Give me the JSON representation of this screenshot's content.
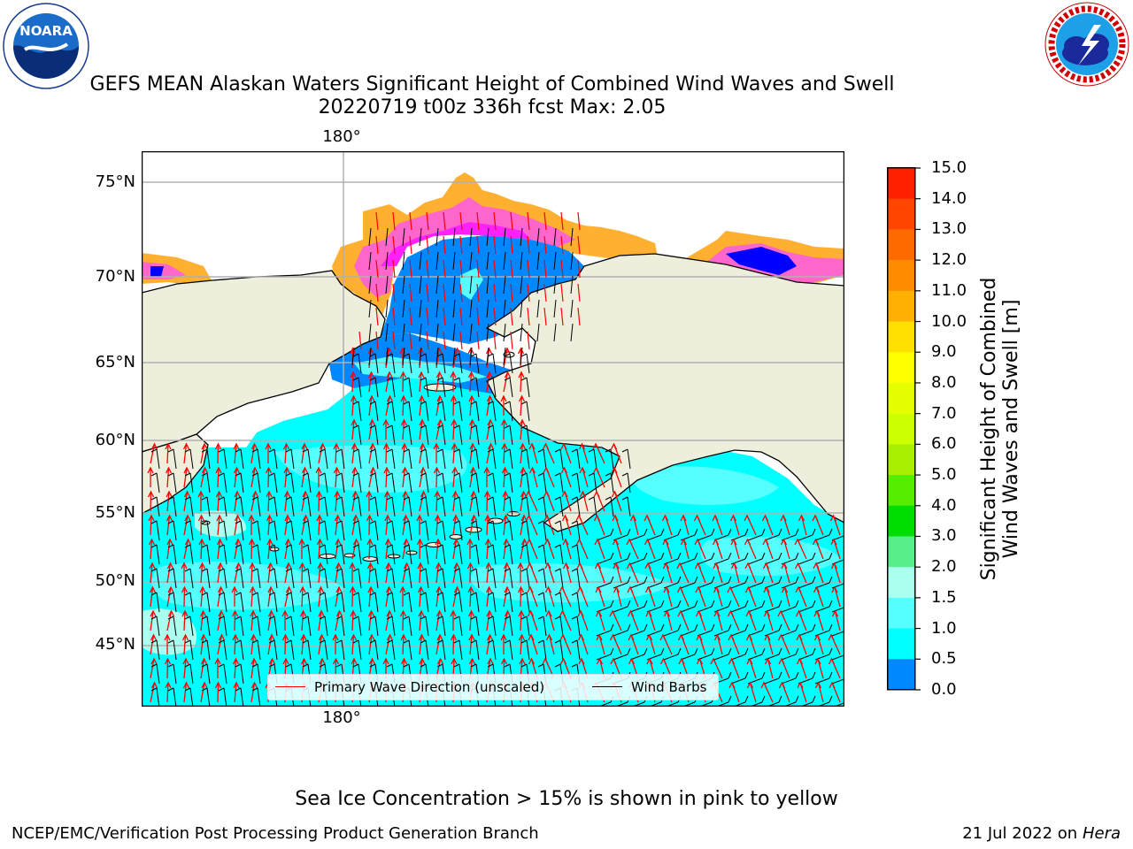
{
  "title": {
    "line1": "GEFS MEAN Alaskan Waters Significant Height of Combined Wind Waves and Swell",
    "line2": "20220719 t00z 336h fcst   Max: 2.05"
  },
  "logos": {
    "left": {
      "name": "NOARA",
      "ring_text": "NATIONAL OCEANIC AND ATMOSPHERIC ADMINISTRATION · U.S. DEPARTMENT OF COMMERCE"
    },
    "right": {
      "ring_text": "NATIONAL WEATHER SERVICE"
    }
  },
  "axes": {
    "lat_ticks": [
      "75°N",
      "70°N",
      "65°N",
      "60°N",
      "55°N",
      "50°N",
      "45°N"
    ],
    "lon_tick_top": "180°",
    "lon_tick_bottom": "180°"
  },
  "legend": {
    "wave_direction": "Primary Wave Direction (unscaled)",
    "wind_barbs": "Wind Barbs"
  },
  "colorbar": {
    "label": "Significant Height of Combined Wind Waves and Swell [m]",
    "label_line1": "Significant Height of Combined",
    "label_line2": "Wind Waves and Swell [m]",
    "ticks": [
      "15.0",
      "14.0",
      "13.0",
      "12.0",
      "11.0",
      "10.0",
      "9.0",
      "8.0",
      "7.0",
      "6.0",
      "5.0",
      "4.0",
      "3.0",
      "2.0",
      "1.5",
      "1.0",
      "0.5",
      "0.0"
    ],
    "colors": [
      "#ff0000",
      "#ff2000",
      "#ff4500",
      "#ff6a00",
      "#ff8c00",
      "#ffb000",
      "#ffe000",
      "#ffff00",
      "#e6ff00",
      "#ccff00",
      "#a8f000",
      "#55ee00",
      "#00dd00",
      "#55ee88",
      "#aaffee",
      "#55ffff",
      "#00ffff",
      "#0088ff",
      "#0000ff"
    ]
  },
  "colors": {
    "land": "#eeeedc",
    "ocean_1_to_1_5": "#00ffff",
    "ocean_1_5_to_2": "#55ffff",
    "ocean_0_5_to_1": "#0088ff",
    "ocean_0_to_0_5": "#0000ff",
    "ice_pink": "#ff66cc",
    "ice_magenta": "#ff22ff",
    "ice_orange": "#ffb030",
    "arrow": "#ff0000",
    "barb": "#000000"
  },
  "footer": {
    "ice_note": "Sea Ice Concentration > 15% is shown in pink to yellow",
    "left": "NCEP/EMC/Verification Post Processing Product Generation Branch",
    "date": "21 Jul 2022 on",
    "machine": "Hera"
  }
}
